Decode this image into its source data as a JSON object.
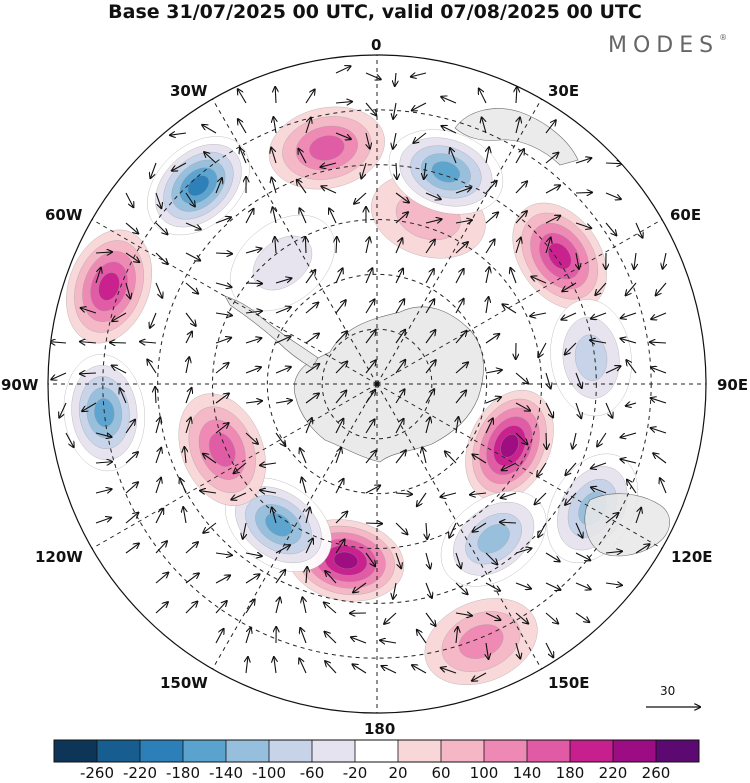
{
  "title": "Base 31/07/2025 00 UTC, valid 07/08/2025 00 UTC",
  "logo": "MODES",
  "logo_mark": "®",
  "longitude_labels": {
    "l0": "0",
    "l30e": "30E",
    "l60e": "60E",
    "l90e": "90E",
    "l120e": "120E",
    "l150e": "150E",
    "l180": "180",
    "l150w": "150W",
    "l120w": "120W",
    "l90w": "90W",
    "l60w": "60W",
    "l30w": "30W"
  },
  "wind_reference": {
    "value": "30"
  },
  "colorbar": {
    "colors": [
      "#0d3557",
      "#185d8f",
      "#2c7fb8",
      "#5aa3cf",
      "#96bfdd",
      "#c6d3e8",
      "#e6e3f0",
      "#ffffff",
      "#f9d6d8",
      "#f5b7c6",
      "#ee88b4",
      "#e05aa5",
      "#c81f8e",
      "#9c0c82",
      "#5c0a72"
    ],
    "labels": [
      "-260",
      "-220",
      "-180",
      "-140",
      "-100",
      "-60",
      "-20",
      "20",
      "60",
      "100",
      "140",
      "180",
      "220",
      "260"
    ]
  },
  "chart_data": {
    "type": "heatmap",
    "title": "Base 31/07/2025 00 UTC, valid 07/08/2025 00 UTC",
    "projection": "south polar stereographic",
    "legend_placement": "bottom",
    "levels": [
      -260,
      -220,
      -180,
      -140,
      -100,
      -60,
      -20,
      20,
      60,
      100,
      140,
      180,
      220,
      260
    ],
    "anomaly_centers": [
      {
        "lon": 17,
        "colat_deg": 48,
        "value": 60
      },
      {
        "lon": -12,
        "colat_deg": 66,
        "value": 140
      },
      {
        "lon": 18,
        "colat_deg": 61,
        "value": -180
      },
      {
        "lon": -42,
        "colat_deg": 73,
        "value": -240
      },
      {
        "lon": -70,
        "colat_deg": 78,
        "value": 180
      },
      {
        "lon": -96,
        "colat_deg": 75,
        "value": -200
      },
      {
        "lon": 55,
        "colat_deg": 61,
        "value": 180
      },
      {
        "lon": 83,
        "colat_deg": 59,
        "value": -100
      },
      {
        "lon": 115,
        "colat_deg": 40,
        "value": 220
      },
      {
        "lon": 120,
        "colat_deg": 68,
        "value": -140
      },
      {
        "lon": 143,
        "colat_deg": 53,
        "value": -140
      },
      {
        "lon": 158,
        "colat_deg": 76,
        "value": 100
      },
      {
        "lon": -170,
        "colat_deg": 49,
        "value": 220
      },
      {
        "lon": -145,
        "colat_deg": 47,
        "value": -200
      },
      {
        "lon": -113,
        "colat_deg": 46,
        "value": 140
      },
      {
        "lon": -38,
        "colat_deg": 42,
        "value": -60
      }
    ]
  }
}
